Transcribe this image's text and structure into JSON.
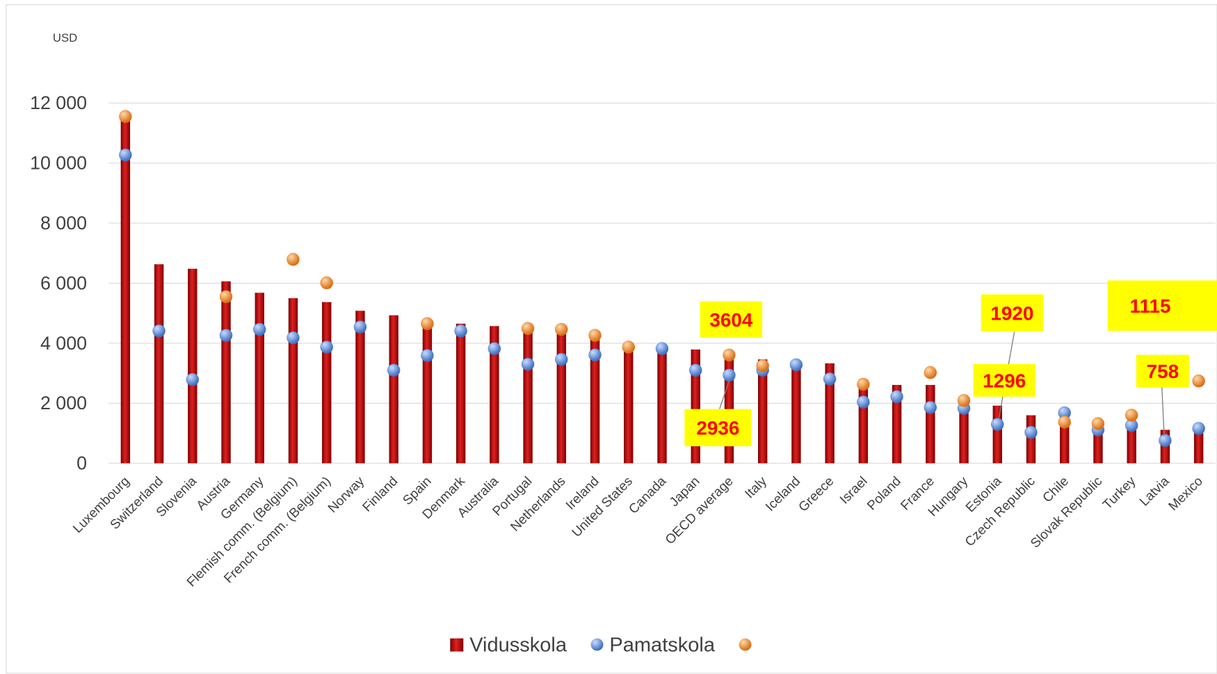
{
  "chart_data": {
    "type": "bar",
    "y_axis_label": "USD",
    "categories": [
      "Luxembourg",
      "Switzerland",
      "Slovenia",
      "Austria",
      "Germany",
      "Flemish comm. (Belgium)",
      "French comm. (Belgium)",
      "Norway",
      "Finland",
      "Spain",
      "Denmark",
      "Australia",
      "Portugal",
      "Netherlands",
      "Ireland",
      "United States",
      "Canada",
      "Japan",
      "OECD average",
      "Italy",
      "Iceland",
      "Greece",
      "Israel",
      "Poland",
      "France",
      "Hungary",
      "Estonia",
      "Czech Republic",
      "Chile",
      "Slovak Republic",
      "Turkey",
      "Latvia",
      "Mexico"
    ],
    "series": [
      {
        "name": "Vidusskola",
        "color": "#c00000",
        "mark": "bar",
        "values": [
          11550,
          6630,
          6480,
          6060,
          5680,
          5500,
          5370,
          5080,
          4930,
          4590,
          4650,
          4570,
          4520,
          4460,
          4340,
          3870,
          3820,
          3790,
          3750,
          3460,
          3400,
          3330,
          2790,
          2610,
          2610,
          1990,
          1920,
          1600,
          1680,
          1260,
          1420,
          1115,
          1140
        ]
      },
      {
        "name": "Pamatskola",
        "color": "#4a7fd0",
        "mark": "dot",
        "values": [
          10270,
          4410,
          2790,
          4260,
          4460,
          4180,
          3870,
          4540,
          3100,
          3590,
          4410,
          3820,
          3300,
          3460,
          3610,
          null,
          3820,
          3100,
          2936,
          3100,
          3280,
          2810,
          2040,
          2220,
          1860,
          1830,
          1296,
          1030,
          1680,
          1110,
          1260,
          758,
          1160
        ]
      },
      {
        "color": "#e87a1e",
        "mark": "dot",
        "values": [
          11550,
          null,
          null,
          5550,
          null,
          6790,
          6010,
          null,
          null,
          4650,
          null,
          null,
          4490,
          4460,
          4260,
          3870,
          null,
          null,
          3604,
          3250,
          null,
          null,
          2630,
          null,
          3020,
          2090,
          null,
          null,
          1370,
          1320,
          1600,
          null,
          2740
        ]
      }
    ],
    "annotations": [
      "3604",
      "2936",
      "1920",
      "1296",
      "1115",
      "758"
    ],
    "ylim": [
      0,
      12000
    ],
    "yticks": [
      0,
      {
        "value": 2000,
        "label": "2 000"
      },
      {
        "value": 4000,
        "label": "4 000"
      },
      {
        "value": 6000,
        "label": "6 000"
      },
      {
        "value": 8000,
        "label": "8 000"
      },
      {
        "value": 10000,
        "label": "10 000"
      },
      {
        "value": 12000,
        "label": "12 000"
      }
    ],
    "grid": true
  }
}
